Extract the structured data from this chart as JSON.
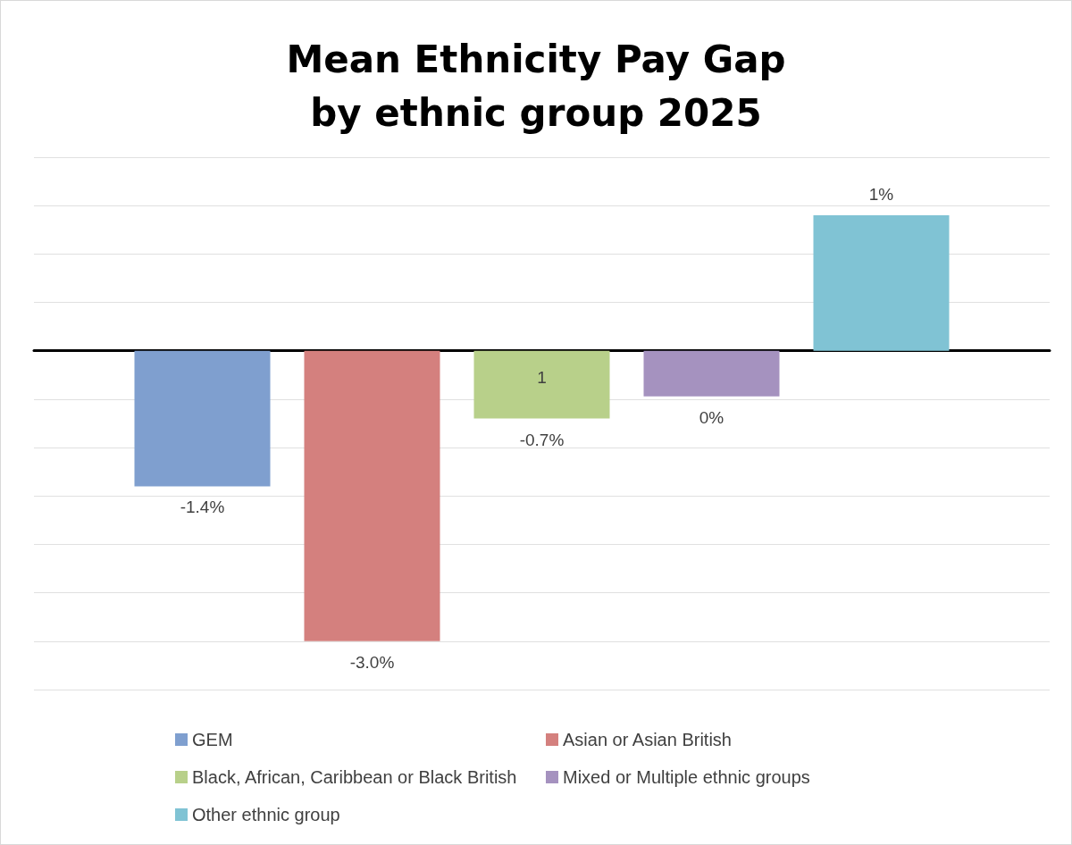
{
  "chart_data": {
    "type": "bar",
    "title": "Mean Ethnicity Pay Gap\nby ethnic group 2025",
    "categories": [
      null
    ],
    "series": [
      {
        "name": "GEM",
        "color": "#7f9fcf",
        "values": [
          -1.4
        ],
        "value_labels": [
          "-1.4%"
        ]
      },
      {
        "name": "Asian or Asian British",
        "color": "#d4807e",
        "values": [
          -3.0
        ],
        "value_labels": [
          "-3.0%"
        ]
      },
      {
        "name": "Black, African, Caribbean or Black British",
        "color": "#b8d08a",
        "values": [
          -0.7
        ],
        "value_labels": [
          "-0.7%"
        ]
      },
      {
        "name": "Mixed or Multiple ethnic groups",
        "color": "#a592bf",
        "values": [
          -0.47
        ],
        "value_labels": [
          "0%"
        ]
      },
      {
        "name": "Other ethnic group",
        "color": "#80c3d4",
        "values": [
          1.4
        ],
        "value_labels": [
          "1%"
        ]
      }
    ],
    "annotations": [
      "1"
    ],
    "ylim": [
      -3.5,
      2
    ],
    "yticks": [
      {
        "value": -3.5,
        "label": null
      },
      {
        "value": -3,
        "label": null
      },
      {
        "value": -2.5,
        "label": null
      },
      {
        "value": -2,
        "label": null
      },
      {
        "value": -1.5,
        "label": null
      },
      {
        "value": -1,
        "label": null
      },
      {
        "value": -0.5,
        "label": null
      },
      {
        "value": 0,
        "label": null
      },
      {
        "value": 0.5,
        "label": null
      },
      {
        "value": 1,
        "label": null
      },
      {
        "value": 1.5,
        "label": null
      },
      {
        "value": 2,
        "label": null
      }
    ],
    "grid": true,
    "legend": "bottom"
  }
}
